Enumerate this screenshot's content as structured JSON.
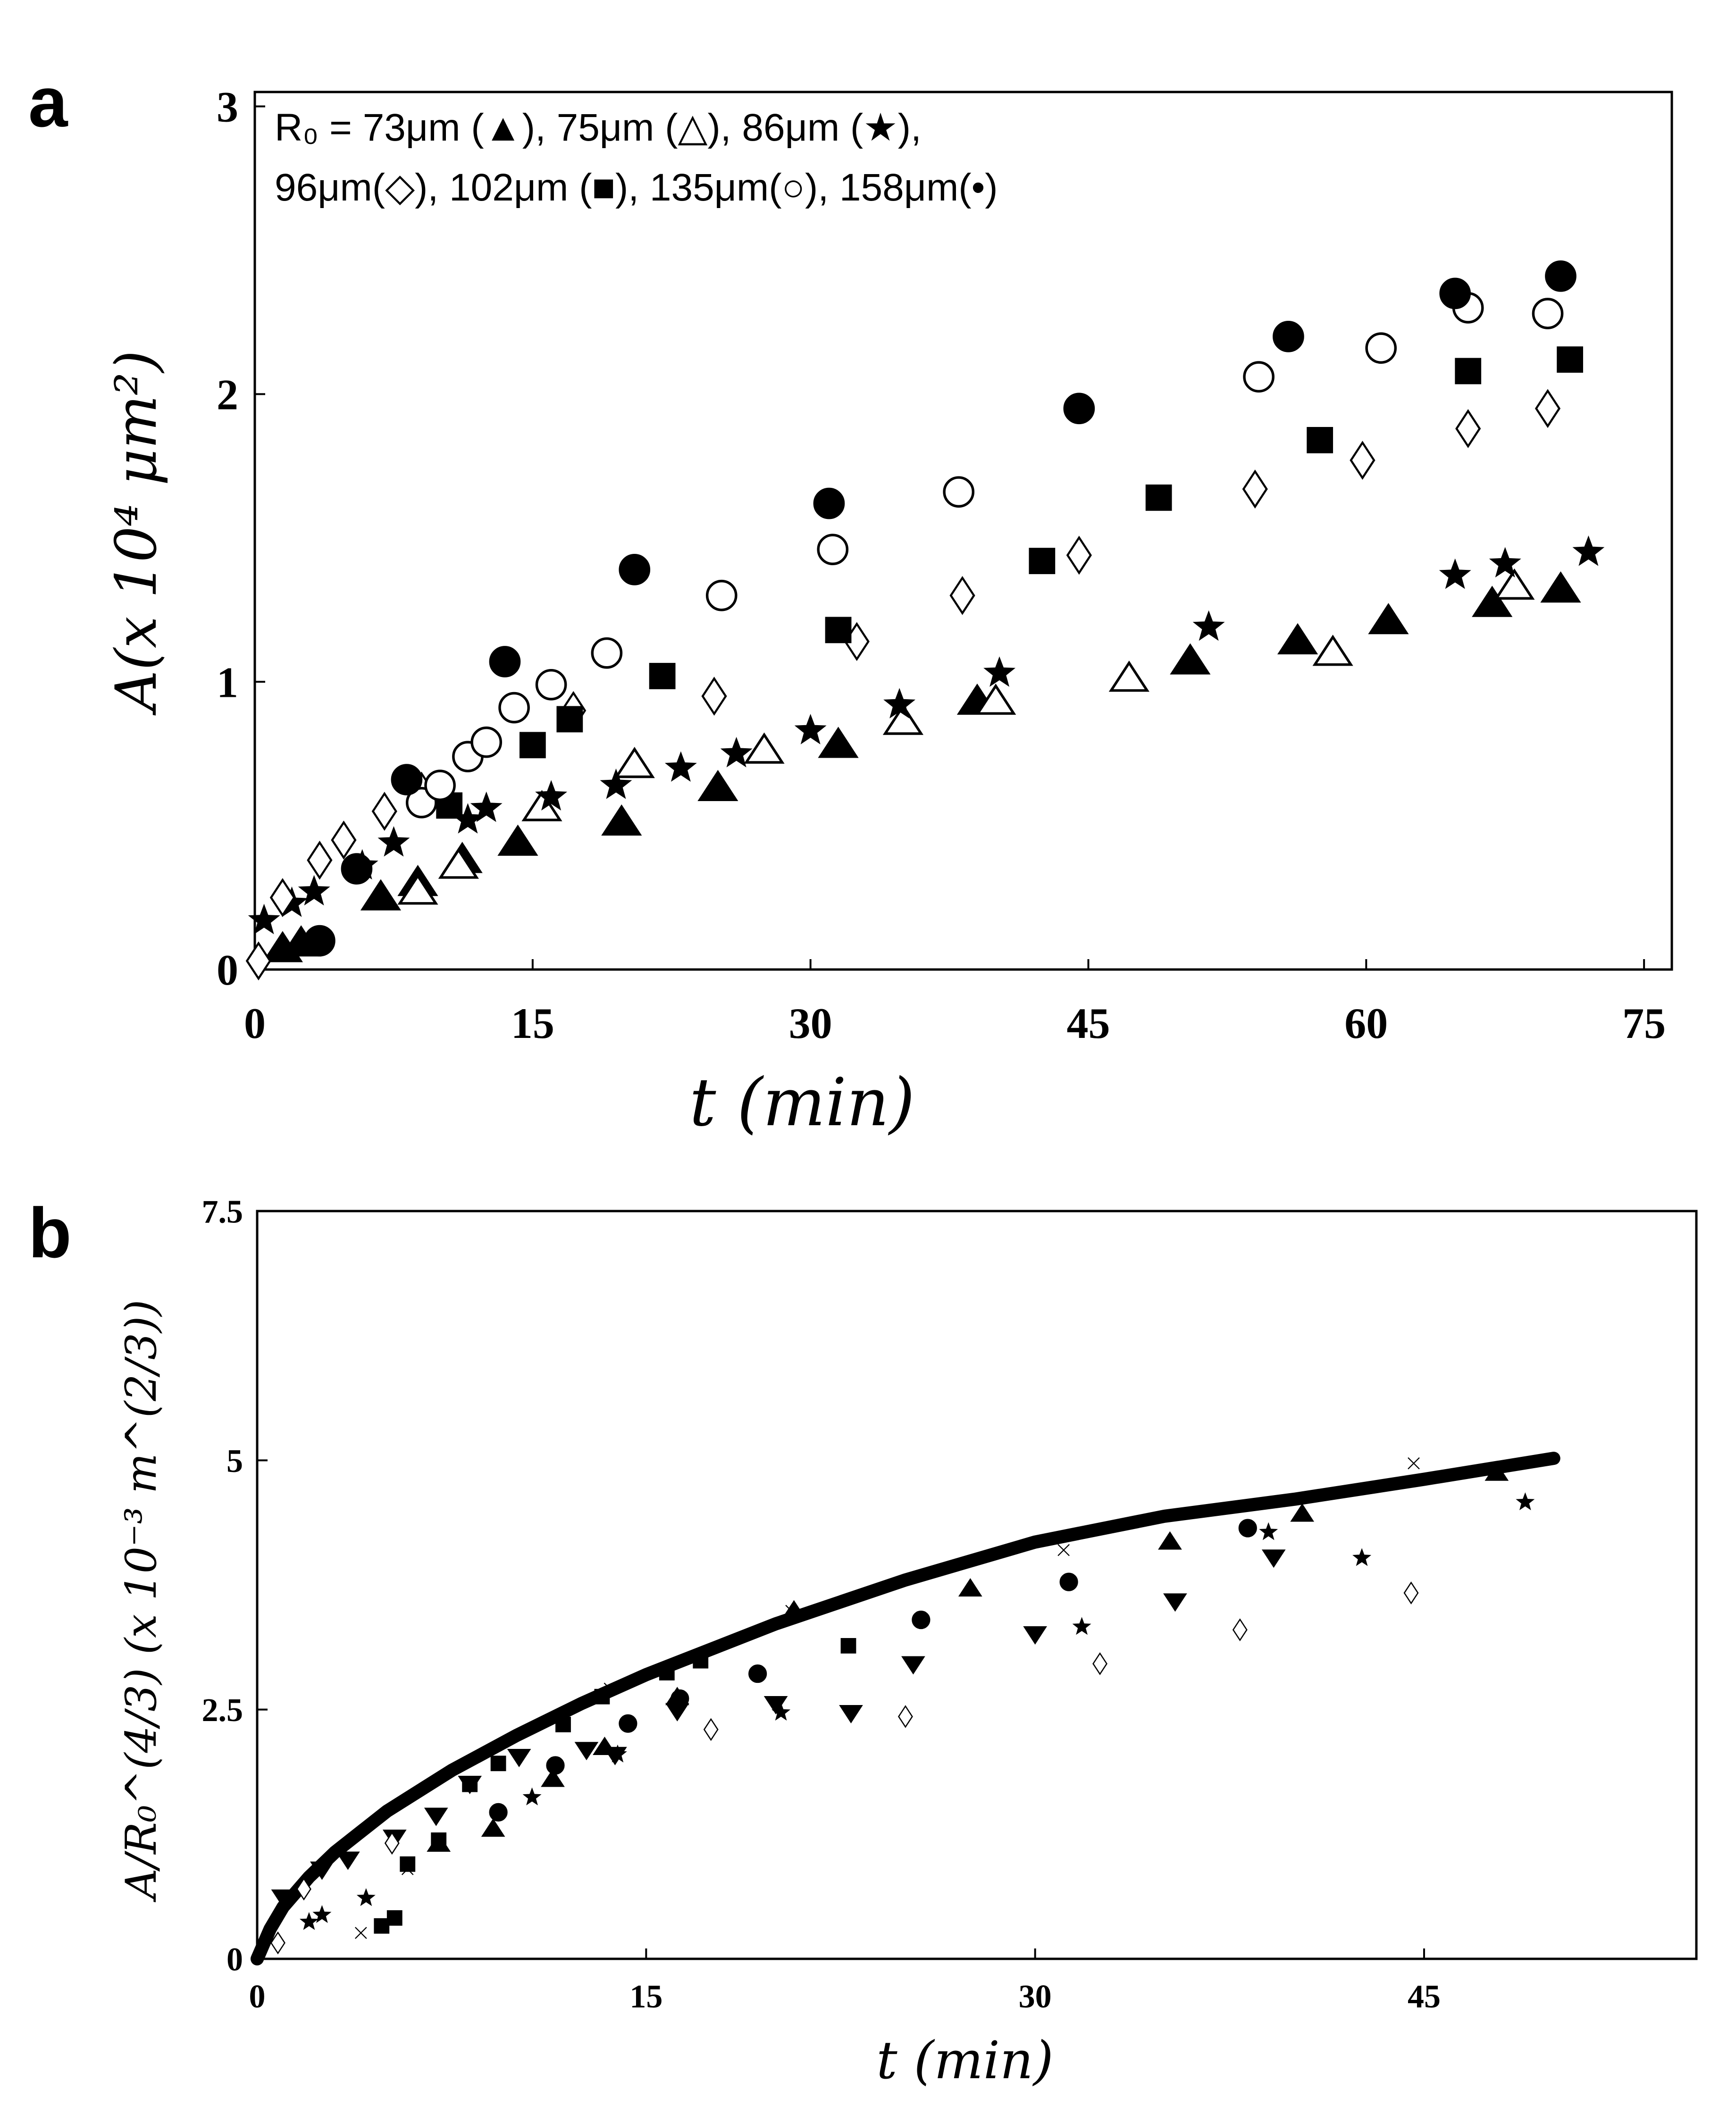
{
  "panels": {
    "a": {
      "letter": "a"
    },
    "b": {
      "letter": "b"
    }
  },
  "legend": {
    "line1": "R₀ = 73μm (▲), 75μm (△), 86μm (★),",
    "line2": "96μm(◇), 102μm (■), 135μm(○), 158μm(•)"
  },
  "chart_data": [
    {
      "type": "scatter",
      "panel": "a",
      "xlabel": "t (min)",
      "ylabel": "A(x 10⁴ μm²)",
      "xlim": [
        0,
        76.5
      ],
      "ylim": [
        0,
        3.05
      ],
      "x_ticks": [
        0,
        15,
        30,
        45,
        60,
        75
      ],
      "x_tick_labels": [
        "0",
        "15",
        "30",
        "45",
        "60",
        "75"
      ],
      "y_ticks": [
        0,
        1,
        2,
        3
      ],
      "y_tick_labels": [
        "0",
        "1",
        "2",
        "3"
      ],
      "grid": false,
      "legend_position": "top-left",
      "series": [
        {
          "name": "73μm",
          "marker": "triangle-filled",
          "x": [
            1.5,
            2.5,
            6.8,
            8.8,
            11.2,
            14.2,
            19.8,
            25.0,
            31.5,
            39.0,
            50.5,
            56.3,
            61.2,
            66.8,
            70.5
          ],
          "y": [
            0.07,
            0.09,
            0.25,
            0.3,
            0.38,
            0.44,
            0.51,
            0.63,
            0.78,
            0.93,
            1.07,
            1.14,
            1.21,
            1.27,
            1.32
          ]
        },
        {
          "name": "75μm",
          "marker": "triangle-open",
          "x": [
            8.8,
            11.0,
            15.5,
            20.5,
            27.5,
            35.0,
            40.0,
            47.2,
            58.2,
            68.0
          ],
          "y": [
            0.27,
            0.36,
            0.56,
            0.71,
            0.76,
            0.86,
            0.93,
            1.01,
            1.1,
            1.33
          ]
        },
        {
          "name": "86μm",
          "marker": "star",
          "x": [
            0.5,
            2.0,
            3.2,
            5.8,
            7.5,
            11.5,
            12.5,
            16.0,
            19.5,
            23.0,
            26.0,
            30.0,
            34.8,
            40.2,
            51.5,
            64.8,
            67.5,
            72.0
          ],
          "y": [
            0.17,
            0.23,
            0.27,
            0.36,
            0.44,
            0.52,
            0.56,
            0.6,
            0.64,
            0.7,
            0.75,
            0.83,
            0.92,
            1.03,
            1.19,
            1.37,
            1.41,
            1.45
          ]
        },
        {
          "name": "96μm",
          "marker": "diamond-open",
          "x": [
            0.2,
            1.5,
            3.5,
            4.8,
            7.0,
            9.0,
            17.2,
            24.8,
            32.5,
            38.2,
            44.5,
            54.0,
            59.8,
            65.5,
            69.8
          ],
          "y": [
            0.03,
            0.25,
            0.38,
            0.45,
            0.55,
            0.62,
            0.9,
            0.95,
            1.14,
            1.3,
            1.44,
            1.67,
            1.77,
            1.88,
            1.95
          ]
        },
        {
          "name": "102μm",
          "marker": "square-filled",
          "x": [
            10.5,
            15.0,
            17.0,
            22.0,
            31.5,
            42.5,
            48.8,
            57.5,
            65.5,
            71.0
          ],
          "y": [
            0.57,
            0.78,
            0.87,
            1.02,
            1.18,
            1.42,
            1.64,
            1.84,
            2.08,
            2.12
          ]
        },
        {
          "name": "135μm",
          "marker": "circle-open",
          "x": [
            9.0,
            10.0,
            11.5,
            12.5,
            14.0,
            16.0,
            19.0,
            25.2,
            31.2,
            38.0,
            54.2,
            60.8,
            65.5,
            69.8
          ],
          "y": [
            0.58,
            0.64,
            0.74,
            0.79,
            0.91,
            0.99,
            1.1,
            1.3,
            1.46,
            1.66,
            2.06,
            2.16,
            2.3,
            2.28
          ]
        },
        {
          "name": "158μm",
          "marker": "circle-filled",
          "x": [
            3.5,
            5.5,
            8.2,
            13.5,
            20.5,
            31.0,
            44.5,
            55.8,
            64.8,
            70.5
          ],
          "y": [
            0.1,
            0.35,
            0.66,
            1.07,
            1.39,
            1.62,
            1.95,
            2.2,
            2.35,
            2.41
          ]
        }
      ]
    },
    {
      "type": "scatter",
      "panel": "b",
      "xlabel": "t (min)",
      "ylabel": "A/R₀^(4/3) (x 10⁻³ m^(2/3))",
      "xlim": [
        0,
        55.5
      ],
      "ylim": [
        0,
        7.5
      ],
      "x_ticks": [
        0,
        15,
        30,
        45
      ],
      "x_tick_labels": [
        "0",
        "15",
        "30",
        "45"
      ],
      "y_ticks": [
        0,
        2.5,
        5,
        7.5
      ],
      "y_tick_labels": [
        "0",
        "2.5",
        "5",
        "7.5"
      ],
      "grid": false,
      "fit_curve": {
        "x": [
          0,
          0.5,
          1,
          2,
          3,
          5,
          7.5,
          10,
          12.5,
          15,
          20,
          25,
          30,
          35,
          40,
          45,
          50
        ],
        "y": [
          0,
          0.3,
          0.52,
          0.82,
          1.07,
          1.48,
          1.89,
          2.24,
          2.56,
          2.85,
          3.36,
          3.8,
          4.18,
          4.44,
          4.61,
          4.81,
          5.02
        ]
      },
      "series": [
        {
          "marker": "triangle-down-filled",
          "x": [
            1.0,
            2.5,
            3.5,
            5.3,
            6.9,
            8.2,
            10.1,
            12.7,
            13.8,
            16.2,
            20.0,
            22.9,
            25.3,
            30.0,
            35.4,
            39.2
          ],
          "y": [
            0.62,
            0.9,
            1.0,
            1.22,
            1.44,
            1.76,
            2.03,
            2.1,
            2.05,
            2.49,
            2.56,
            2.47,
            2.96,
            3.26,
            3.59,
            4.03
          ]
        },
        {
          "marker": "triangle-filled",
          "x": [
            7.0,
            9.1,
            11.4,
            13.4,
            16.2,
            20.7,
            27.5,
            35.2,
            40.3,
            47.8
          ],
          "y": [
            1.15,
            1.3,
            1.8,
            2.12,
            2.62,
            3.49,
            3.71,
            4.18,
            4.46,
            4.87
          ]
        },
        {
          "marker": "square-filled",
          "x": [
            4.8,
            5.3,
            5.8,
            7.0,
            8.2,
            9.3,
            11.8,
            13.3,
            15.8,
            17.1,
            22.8
          ],
          "y": [
            0.33,
            0.41,
            0.95,
            1.19,
            1.75,
            1.96,
            2.35,
            2.63,
            2.87,
            2.99,
            3.14
          ]
        },
        {
          "marker": "circle-filled",
          "x": [
            9.3,
            11.5,
            14.3,
            16.3,
            19.3,
            25.6,
            31.3,
            38.2
          ],
          "y": [
            1.47,
            1.94,
            2.36,
            2.61,
            2.86,
            3.4,
            3.78,
            4.32
          ]
        },
        {
          "marker": "diamond-open",
          "x": [
            0.8,
            1.8,
            5.2,
            17.5,
            25.0,
            32.5,
            37.9,
            44.5
          ],
          "y": [
            0.16,
            0.7,
            1.16,
            2.3,
            2.43,
            2.96,
            3.3,
            3.67
          ]
        },
        {
          "marker": "star",
          "x": [
            2.0,
            2.5,
            4.2,
            10.6,
            13.9,
            20.2,
            31.8,
            39.0,
            42.6,
            48.9
          ],
          "y": [
            0.37,
            0.44,
            0.61,
            1.62,
            2.05,
            2.47,
            3.33,
            4.28,
            4.02,
            4.58
          ]
        },
        {
          "marker": "cross",
          "x": [
            4.0,
            5.8,
            13.6,
            20.6,
            31.1,
            44.6
          ],
          "y": [
            0.26,
            0.9,
            2.71,
            3.49,
            4.1,
            4.97
          ]
        }
      ]
    }
  ]
}
